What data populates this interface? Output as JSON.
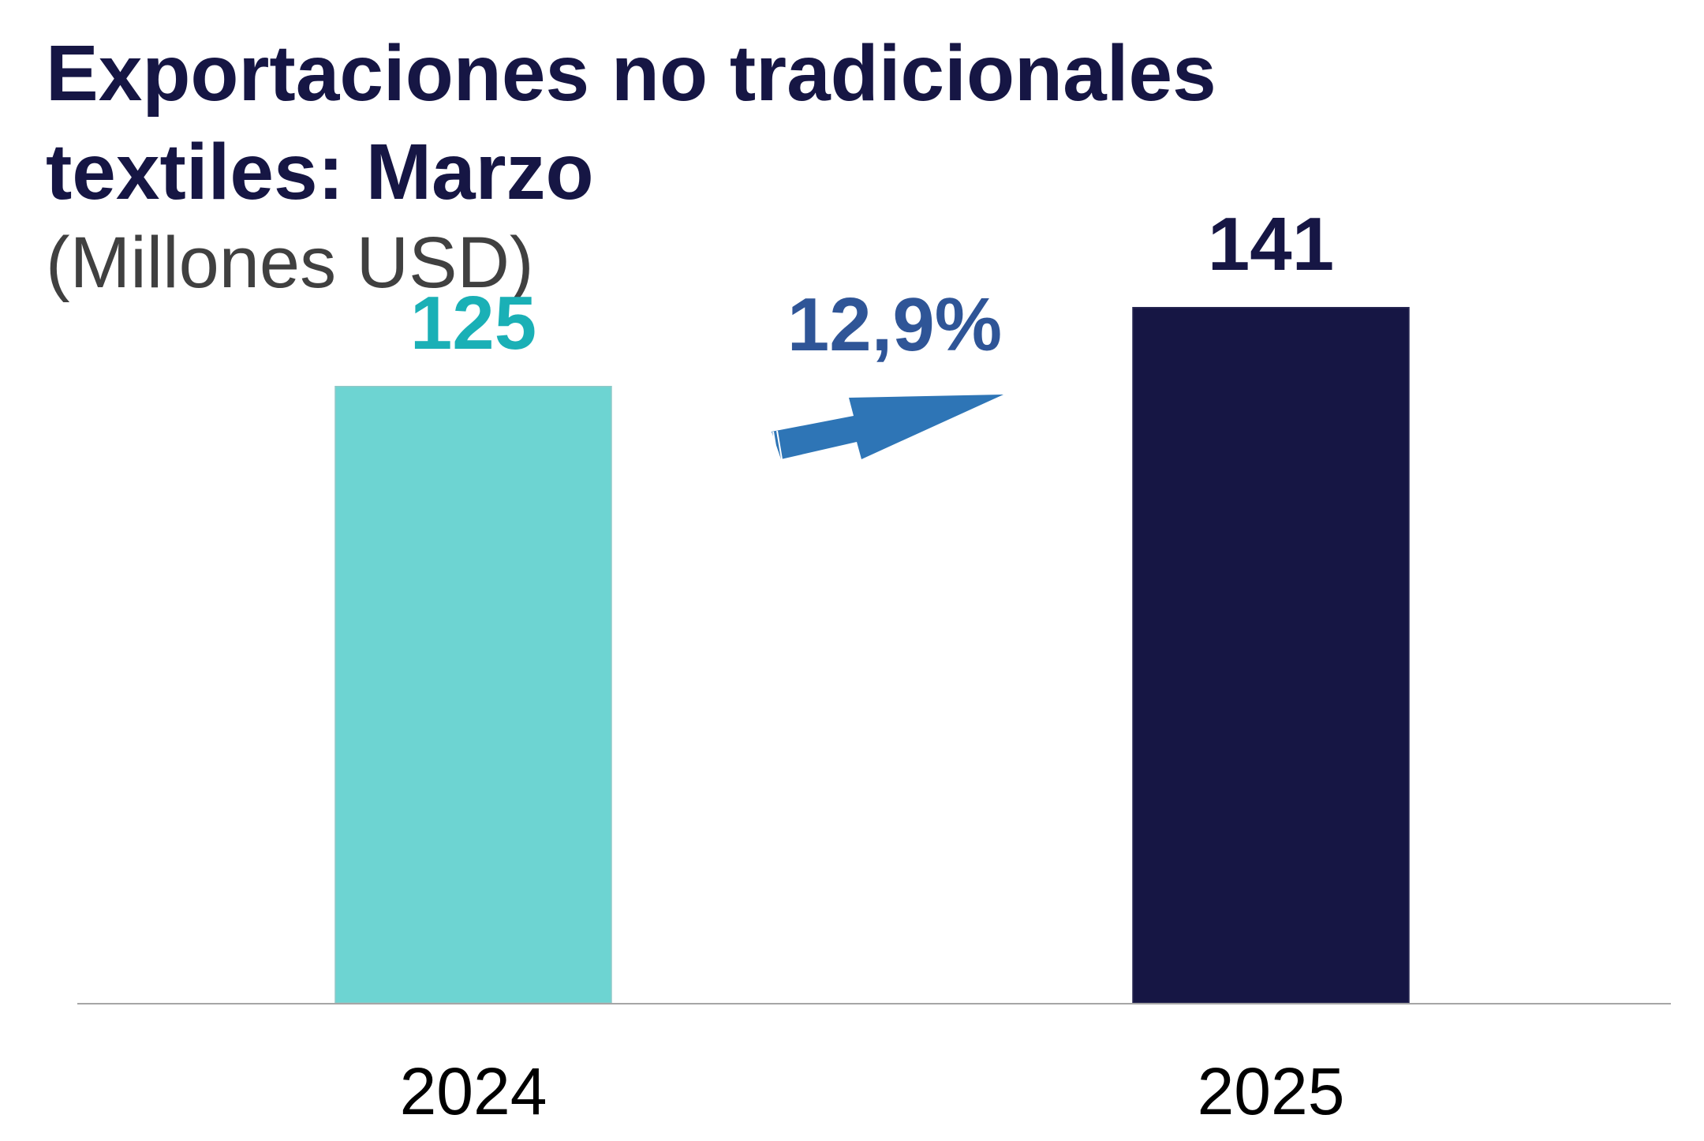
{
  "colors": {
    "title": "#161644",
    "subtitle": "#404040",
    "bar_2024": "#6dd4d2",
    "bar_2025": "#161644",
    "label_2024": "#1ab0b6",
    "label_2025": "#161644",
    "growth": "#2f5597",
    "arrow": "#2e75b6",
    "axis": "#a6a6a6",
    "tick": "#000000"
  },
  "chart_data": {
    "type": "bar",
    "title_line1": "Exportaciones no tradicionales",
    "title_line2": "textiles: Marzo",
    "subtitle": "(Millones USD)",
    "categories": [
      "2024",
      "2025"
    ],
    "values": [
      125,
      141
    ],
    "value_labels": [
      "125",
      "141"
    ],
    "ylim": [
      0,
      160
    ],
    "growth_label": "12,9%",
    "growth_icon": "arrow-up-right-icon",
    "grid": false,
    "legend": "none"
  }
}
